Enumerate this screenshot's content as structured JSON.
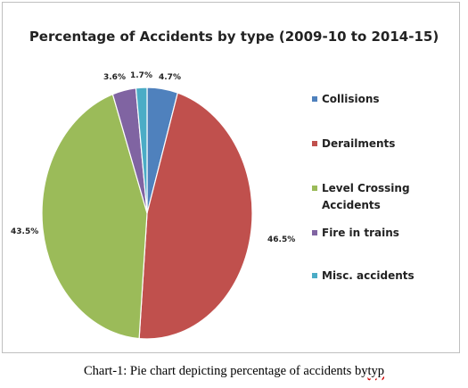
{
  "chart_data": {
    "type": "pie",
    "title": "Percentage of Accidents by type (2009-10 to 2014-15)",
    "slices": [
      {
        "name": "Collisions",
        "value": 4.7,
        "label": "4.7%",
        "color": "#4f81bd"
      },
      {
        "name": "Derailments",
        "value": 46.5,
        "label": "46.5%",
        "color": "#c0504d"
      },
      {
        "name": "Level Crossing Accidents",
        "value": 43.5,
        "label": "43.5%",
        "color": "#9bbb59"
      },
      {
        "name": "Fire in trains",
        "value": 3.6,
        "label": "3.6%",
        "color": "#8064a2"
      },
      {
        "name": "Misc. accidents",
        "value": 1.7,
        "label": "1.7%",
        "color": "#4bacc6"
      }
    ],
    "legend": {
      "placement": "right",
      "entries": [
        [
          "Collisions"
        ],
        [
          "Derailments"
        ],
        [
          "Level Crossing",
          "Accidents"
        ],
        [
          "Fire in trains"
        ],
        [
          "Misc. accidents"
        ]
      ]
    }
  },
  "caption": {
    "main": "Chart-1: Pie chart depicting percentage of accidents by",
    "misspelled": "typ"
  }
}
